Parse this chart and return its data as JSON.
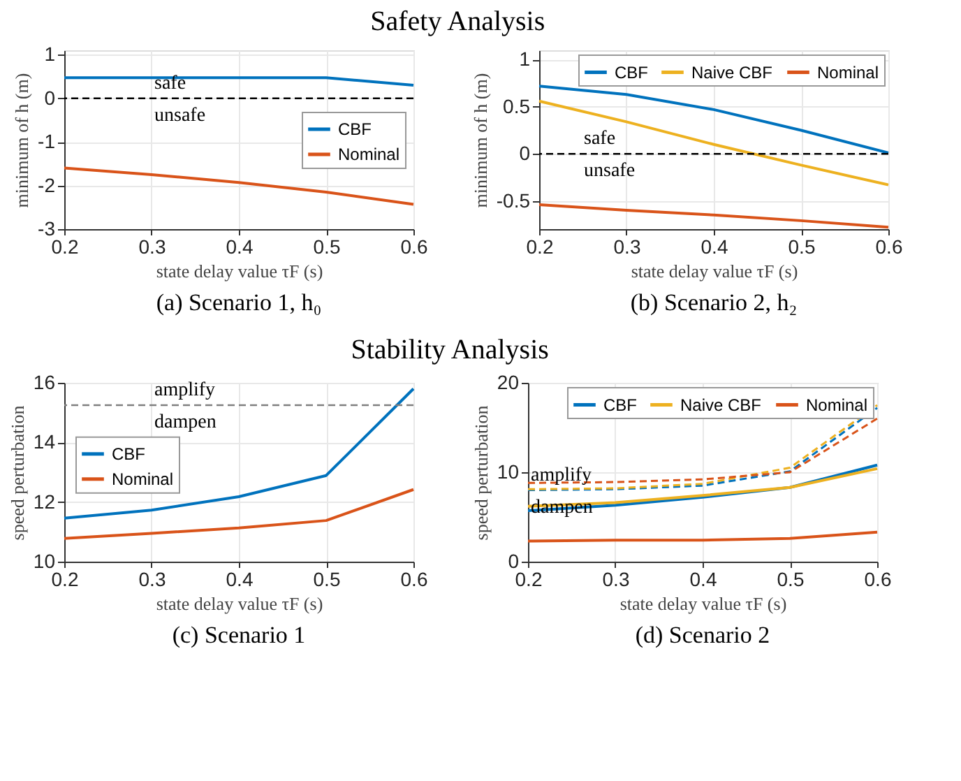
{
  "chart_data": [
    {
      "type": "line",
      "title": "Safety Analysis",
      "xlabel": "state delay value τF (s)",
      "ylabel": "minimum of h (m)",
      "x": [
        0.2,
        0.3,
        0.4,
        0.5,
        0.6
      ],
      "xlim": [
        0.2,
        0.6
      ],
      "xticks": [
        0.2,
        0.3,
        0.4,
        0.5,
        0.6
      ],
      "ylim": [
        -3,
        1.1
      ],
      "yticks": [
        -3,
        -2,
        -1,
        0,
        1
      ],
      "grid": true,
      "legend": "right",
      "series": [
        {
          "name": "CBF",
          "color": "#0072bd",
          "values": [
            0.47,
            0.47,
            0.47,
            0.47,
            0.3
          ]
        },
        {
          "name": "Nominal",
          "color": "#d95319",
          "values": [
            -1.6,
            -1.75,
            -1.93,
            -2.15,
            -2.43
          ]
        }
      ],
      "ref_lines": [
        {
          "axis": "y",
          "value": 0,
          "color": "#000000",
          "line_style": "dashed"
        }
      ],
      "annotations": [
        "safe",
        "unsafe",
        "(a) Scenario 1, h₀"
      ]
    },
    {
      "type": "line",
      "xlabel": "state delay value τF (s)",
      "ylabel": "minimum of h (m)",
      "x": [
        0.2,
        0.3,
        0.4,
        0.5,
        0.6
      ],
      "xlim": [
        0.2,
        0.6
      ],
      "xticks": [
        0.2,
        0.3,
        0.4,
        0.5,
        0.6
      ],
      "ylim": [
        -0.8,
        1.1
      ],
      "yticks": [
        -0.5,
        0,
        0.5,
        1
      ],
      "grid": true,
      "legend": "top right",
      "series": [
        {
          "name": "CBF",
          "color": "#0072bd",
          "values": [
            0.72,
            0.63,
            0.47,
            0.25,
            0.01
          ]
        },
        {
          "name": "Naive CBF",
          "color": "#edb120",
          "values": [
            0.56,
            0.34,
            0.1,
            -0.12,
            -0.33
          ]
        },
        {
          "name": "Nominal",
          "color": "#d95319",
          "values": [
            -0.54,
            -0.6,
            -0.65,
            -0.71,
            -0.78
          ]
        }
      ],
      "ref_lines": [
        {
          "axis": "y",
          "value": 0,
          "color": "#000000",
          "line_style": "dashed"
        }
      ],
      "annotations": [
        "safe",
        "unsafe",
        "(b) Scenario 2, h₂"
      ]
    },
    {
      "type": "line",
      "title": "Stability Analysis",
      "xlabel": "state delay value τF (s)",
      "ylabel": "speed perturbation",
      "x": [
        0.2,
        0.3,
        0.4,
        0.5,
        0.6
      ],
      "xlim": [
        0.2,
        0.6
      ],
      "xticks": [
        0.2,
        0.3,
        0.4,
        0.5,
        0.6
      ],
      "ylim": [
        10,
        16
      ],
      "yticks": [
        10,
        12,
        14,
        16
      ],
      "grid": true,
      "legend": "left",
      "series": [
        {
          "name": "CBF",
          "color": "#0072bd",
          "values": [
            11.46,
            11.73,
            12.18,
            12.89,
            15.8
          ]
        },
        {
          "name": "Nominal",
          "color": "#d95319",
          "values": [
            10.78,
            10.95,
            11.13,
            11.38,
            12.42
          ]
        }
      ],
      "ref_lines": [
        {
          "axis": "y",
          "value": 15.25,
          "color": "#7f7f7f",
          "line_style": "dashed"
        }
      ],
      "annotations": [
        "amplify",
        "dampen",
        "(c) Scenario 1"
      ]
    },
    {
      "type": "line",
      "xlabel": "state delay value τF (s)",
      "ylabel": "speed perturbation",
      "x": [
        0.2,
        0.3,
        0.4,
        0.5,
        0.6
      ],
      "xlim": [
        0.2,
        0.6
      ],
      "xticks": [
        0.2,
        0.3,
        0.4,
        0.5,
        0.6
      ],
      "ylim": [
        0,
        20
      ],
      "yticks": [
        0,
        10,
        20
      ],
      "grid": true,
      "legend": "top right",
      "series": [
        {
          "name": "CBF",
          "color": "#0072bd",
          "values": [
            5.7,
            6.3,
            7.2,
            8.3,
            10.8
          ]
        },
        {
          "name": "Naive CBF",
          "color": "#edb120",
          "values": [
            6.2,
            6.6,
            7.4,
            8.3,
            10.4
          ]
        },
        {
          "name": "Nominal",
          "color": "#d95319",
          "values": [
            2.3,
            2.4,
            2.4,
            2.6,
            3.3
          ]
        },
        {
          "color": "#0072bd",
          "line_style": "dashed",
          "values": [
            8.0,
            8.1,
            8.5,
            10.1,
            17.2
          ]
        },
        {
          "color": "#edb120",
          "line_style": "dashed",
          "values": [
            8.1,
            8.2,
            8.7,
            10.5,
            17.5
          ]
        },
        {
          "color": "#d95319",
          "line_style": "dashed",
          "values": [
            8.8,
            8.9,
            9.2,
            10.0,
            16.0
          ]
        }
      ],
      "annotations": [
        "amplify",
        "dampen",
        "(d) Scenario 2"
      ]
    }
  ]
}
